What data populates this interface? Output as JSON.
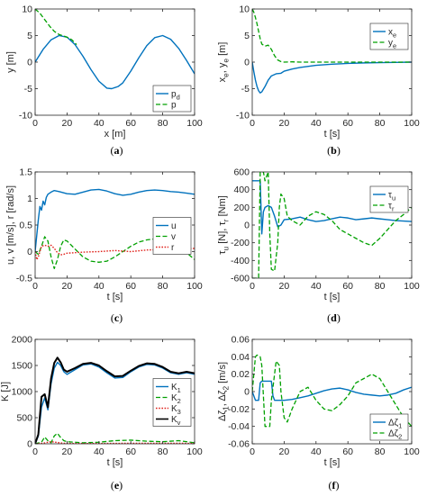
{
  "colors": {
    "blue": "#0072BD",
    "green": "#00A000",
    "red": "#E0231C",
    "black": "#000000"
  },
  "chart_data": [
    {
      "panel": "a",
      "caption": "(a)",
      "type": "line",
      "xlabel": "x [m]",
      "ylabel": "y [m]",
      "xlim": [
        0,
        100
      ],
      "ylim": [
        -10,
        10
      ],
      "xticks": [
        0,
        20,
        40,
        60,
        80,
        100
      ],
      "yticks": [
        -10,
        -5,
        0,
        5,
        10
      ],
      "legend": {
        "position": "bottom-right",
        "entries": [
          "p_d",
          "p"
        ]
      },
      "series": [
        {
          "name": "p_d",
          "color": "blue",
          "dash": "solid",
          "width": 1.4,
          "x": [
            0,
            5,
            10,
            15,
            20,
            25,
            30,
            35,
            40,
            45,
            48,
            52,
            55,
            60,
            65,
            70,
            75,
            80,
            85,
            90,
            95,
            100
          ],
          "y": [
            0,
            2.4,
            4.2,
            5,
            4.7,
            3.3,
            1.1,
            -1.4,
            -3.6,
            -4.9,
            -5,
            -4.6,
            -3.9,
            -1.7,
            0.8,
            3.1,
            4.6,
            5,
            4.3,
            2.6,
            0.3,
            -2.2
          ]
        },
        {
          "name": "p",
          "color": "green",
          "dash": "dashed",
          "width": 1.3,
          "x": [
            0,
            3,
            6,
            9,
            12,
            15,
            18,
            20,
            23,
            26
          ],
          "y": [
            10,
            9.2,
            8,
            6.8,
            5.8,
            5.2,
            4.9,
            4.7,
            4.2,
            3.3
          ]
        }
      ]
    },
    {
      "panel": "b",
      "caption": "(b)",
      "type": "line",
      "xlabel": "t [s]",
      "ylabel": "x_e, y_e [m]",
      "xlim": [
        0,
        100
      ],
      "ylim": [
        -10,
        10
      ],
      "xticks": [
        0,
        20,
        40,
        60,
        80,
        100
      ],
      "yticks": [
        -10,
        -5,
        0,
        5,
        10
      ],
      "legend": {
        "position": "top-right",
        "entries": [
          "x_e",
          "y_e"
        ]
      },
      "series": [
        {
          "name": "x_e",
          "color": "blue",
          "dash": "solid",
          "width": 1.4,
          "x": [
            0,
            1,
            2,
            3,
            4,
            5,
            6,
            8,
            10,
            12,
            15,
            18,
            20,
            25,
            30,
            40,
            50,
            60,
            70,
            80,
            90,
            100
          ],
          "y": [
            0,
            -1.8,
            -3.4,
            -4.6,
            -5.4,
            -5.8,
            -5.6,
            -4.6,
            -3.4,
            -2.6,
            -2.2,
            -2.1,
            -1.7,
            -1.3,
            -1,
            -0.6,
            -0.4,
            -0.25,
            -0.15,
            -0.1,
            -0.05,
            0
          ]
        },
        {
          "name": "y_e",
          "color": "green",
          "dash": "dashed",
          "width": 1.3,
          "x": [
            0,
            1,
            2,
            3,
            4,
            5,
            6,
            8,
            10,
            12,
            14,
            16,
            18,
            20,
            25,
            30,
            40,
            60,
            80,
            100
          ],
          "y": [
            10,
            9.4,
            8.4,
            7.2,
            5.8,
            4.4,
            3.4,
            3,
            3.2,
            2.4,
            1.2,
            0.4,
            0.1,
            0,
            0.05,
            0,
            0,
            0,
            0,
            0
          ]
        }
      ]
    },
    {
      "panel": "c",
      "caption": "(c)",
      "type": "line",
      "xlabel": "t [s]",
      "ylabel": "u, v [m/s], r [rad/s]",
      "xlim": [
        0,
        100
      ],
      "ylim": [
        -0.5,
        1.5
      ],
      "xticks": [
        0,
        20,
        40,
        60,
        80,
        100
      ],
      "yticks": [
        -0.5,
        0,
        0.5,
        1,
        1.5
      ],
      "legend": {
        "position": "right",
        "entries": [
          "u",
          "v",
          "r"
        ]
      },
      "series": [
        {
          "name": "u",
          "color": "blue",
          "dash": "solid",
          "width": 1.4,
          "x": [
            0,
            1,
            2,
            3,
            4,
            5,
            6,
            7,
            8,
            10,
            12,
            15,
            20,
            25,
            30,
            35,
            40,
            45,
            50,
            55,
            60,
            65,
            70,
            75,
            80,
            85,
            90,
            95,
            100
          ],
          "y": [
            0,
            0.3,
            0.6,
            0.85,
            0.78,
            0.95,
            0.88,
            1.02,
            1.08,
            1.12,
            1.15,
            1.13,
            1.09,
            1.08,
            1.12,
            1.16,
            1.17,
            1.14,
            1.09,
            1.06,
            1.08,
            1.12,
            1.15,
            1.16,
            1.15,
            1.13,
            1.12,
            1.1,
            1.08
          ]
        },
        {
          "name": "v",
          "color": "green",
          "dash": "dashed",
          "width": 1.3,
          "x": [
            0,
            2,
            4,
            6,
            8,
            10,
            12,
            14,
            16,
            18,
            20,
            25,
            30,
            35,
            40,
            45,
            50,
            55,
            60,
            65,
            70,
            75,
            80,
            85,
            90,
            95,
            100
          ],
          "y": [
            0,
            -0.05,
            0.1,
            0.28,
            0.2,
            -0.1,
            -0.32,
            -0.15,
            0.1,
            0.22,
            0.2,
            0.05,
            -0.1,
            -0.18,
            -0.2,
            -0.18,
            -0.1,
            0,
            0.1,
            0.18,
            0.22,
            0.24,
            0.22,
            0.17,
            0.1,
            -0.02,
            -0.15
          ]
        },
        {
          "name": "r",
          "color": "red",
          "dash": "dotted",
          "width": 1.4,
          "x": [
            0,
            1,
            2,
            4,
            6,
            8,
            10,
            12,
            14,
            16,
            18,
            20,
            25,
            30,
            40,
            50,
            60,
            70,
            80,
            90,
            100
          ],
          "y": [
            0,
            -0.15,
            -0.1,
            0.1,
            0.12,
            0.1,
            0.12,
            0.06,
            -0.02,
            -0.06,
            -0.05,
            -0.03,
            -0.02,
            -0.01,
            0,
            0.02,
            0.0,
            0.03,
            0.04,
            0.05,
            0.06
          ]
        }
      ]
    },
    {
      "panel": "d",
      "caption": "(d)",
      "type": "line",
      "xlabel": "t [s]",
      "ylabel": "τ_u [N], τ_r [Nm]",
      "xlim": [
        0,
        100
      ],
      "ylim": [
        -600,
        600
      ],
      "xticks": [
        0,
        20,
        40,
        60,
        80,
        100
      ],
      "yticks": [
        -600,
        -400,
        -200,
        0,
        200,
        400,
        600
      ],
      "legend": {
        "position": "top-right",
        "entries": [
          "τ_u",
          "τ_r"
        ]
      },
      "series": [
        {
          "name": "τ_u",
          "color": "blue",
          "dash": "solid",
          "width": 1.4,
          "x": [
            0,
            5,
            6,
            7,
            8,
            10,
            12,
            14,
            16,
            18,
            20,
            25,
            30,
            35,
            40,
            45,
            50,
            55,
            60,
            65,
            70,
            75,
            80,
            85,
            90,
            95,
            100
          ],
          "y": [
            500,
            500,
            -100,
            150,
            200,
            220,
            200,
            100,
            -20,
            0,
            60,
            70,
            90,
            60,
            40,
            50,
            70,
            90,
            80,
            60,
            70,
            80,
            70,
            60,
            50,
            45,
            40
          ]
        },
        {
          "name": "τ_r",
          "color": "green",
          "dash": "dashed",
          "width": 1.3,
          "x": [
            0,
            4,
            5,
            7,
            8,
            10,
            11,
            12,
            14,
            16,
            17,
            18,
            20,
            22,
            25,
            30,
            35,
            40,
            45,
            50,
            55,
            60,
            65,
            70,
            75,
            80,
            85,
            90,
            95,
            100
          ],
          "y": [
            -600,
            -600,
            600,
            600,
            500,
            600,
            -100,
            -500,
            -520,
            -200,
            200,
            350,
            300,
            100,
            50,
            0,
            100,
            150,
            120,
            50,
            -50,
            -100,
            -150,
            -200,
            -230,
            -150,
            -50,
            50,
            120,
            200
          ]
        }
      ]
    },
    {
      "panel": "e",
      "caption": "(e)",
      "type": "line",
      "xlabel": "t [s]",
      "ylabel": "K [J]",
      "xlim": [
        0,
        100
      ],
      "ylim": [
        0,
        2000
      ],
      "xticks": [
        0,
        20,
        40,
        60,
        80,
        100
      ],
      "yticks": [
        0,
        500,
        1000,
        1500,
        2000
      ],
      "legend": {
        "position": "right",
        "entries": [
          "K_1",
          "K_2",
          "K_3",
          "K_v"
        ]
      },
      "series": [
        {
          "name": "K_1",
          "color": "blue",
          "dash": "solid",
          "width": 1.4,
          "x": [
            0,
            2,
            4,
            6,
            8,
            10,
            12,
            14,
            16,
            18,
            20,
            25,
            30,
            35,
            40,
            45,
            50,
            55,
            60,
            65,
            70,
            75,
            80,
            85,
            90,
            95,
            100
          ],
          "y": [
            0,
            150,
            700,
            880,
            650,
            1150,
            1450,
            1560,
            1500,
            1380,
            1330,
            1420,
            1510,
            1530,
            1470,
            1360,
            1260,
            1270,
            1380,
            1470,
            1520,
            1510,
            1450,
            1360,
            1330,
            1360,
            1330
          ]
        },
        {
          "name": "K_2",
          "color": "green",
          "dash": "dashed",
          "width": 1.3,
          "x": [
            0,
            4,
            6,
            8,
            10,
            12,
            14,
            16,
            18,
            20,
            30,
            40,
            50,
            60,
            70,
            80,
            90,
            100
          ],
          "y": [
            0,
            30,
            130,
            60,
            20,
            150,
            200,
            120,
            60,
            40,
            20,
            30,
            60,
            70,
            50,
            40,
            60,
            20
          ]
        },
        {
          "name": "K_3",
          "color": "red",
          "dash": "dotted",
          "width": 1.4,
          "x": [
            0,
            5,
            8,
            10,
            14,
            18,
            25,
            40,
            60,
            80,
            100
          ],
          "y": [
            0,
            10,
            30,
            40,
            25,
            10,
            5,
            5,
            10,
            10,
            8
          ]
        },
        {
          "name": "K_v",
          "color": "black",
          "dash": "solid",
          "width": 2.0,
          "x": [
            0,
            2,
            4,
            6,
            8,
            10,
            12,
            14,
            16,
            18,
            20,
            25,
            30,
            35,
            40,
            45,
            50,
            55,
            60,
            65,
            70,
            75,
            80,
            85,
            90,
            95,
            100
          ],
          "y": [
            0,
            180,
            900,
            950,
            700,
            1250,
            1550,
            1650,
            1560,
            1420,
            1380,
            1450,
            1530,
            1550,
            1500,
            1390,
            1290,
            1300,
            1400,
            1490,
            1540,
            1530,
            1470,
            1380,
            1350,
            1380,
            1350
          ]
        }
      ]
    },
    {
      "panel": "f",
      "caption": "(f)",
      "type": "line",
      "xlabel": "t [s]",
      "ylabel": "Δζ_1, Δζ_2 [m/s]",
      "xlim": [
        0,
        100
      ],
      "ylim": [
        -0.06,
        0.06
      ],
      "xticks": [
        0,
        20,
        40,
        60,
        80,
        100
      ],
      "yticks": [
        -0.06,
        -0.04,
        -0.02,
        0,
        0.02,
        0.04,
        0.06
      ],
      "legend": {
        "position": "bottom-right",
        "entries": [
          "Δζ_1",
          "Δζ_2"
        ]
      },
      "series": [
        {
          "name": "Δζ_1",
          "color": "blue",
          "dash": "solid",
          "width": 1.4,
          "x": [
            0,
            2,
            3,
            4,
            5,
            6,
            8,
            10,
            12,
            13,
            14,
            16,
            18,
            20,
            25,
            30,
            35,
            40,
            45,
            50,
            55,
            60,
            65,
            70,
            75,
            80,
            85,
            90,
            95,
            100
          ],
          "y": [
            0,
            -0.01,
            -0.01,
            -0.01,
            0.01,
            0.012,
            0.012,
            0.012,
            0.012,
            -0.005,
            -0.01,
            -0.01,
            -0.01,
            -0.01,
            -0.009,
            -0.007,
            -0.005,
            -0.002,
            0.001,
            0.003,
            0.004,
            0.002,
            -0.001,
            -0.003,
            -0.004,
            -0.005,
            -0.004,
            -0.002,
            0.002,
            0.005
          ]
        },
        {
          "name": "Δζ_2",
          "color": "green",
          "dash": "dashed",
          "width": 1.3,
          "x": [
            0,
            2,
            3,
            5,
            6,
            8,
            10,
            11,
            12,
            14,
            15,
            17,
            18,
            20,
            22,
            25,
            30,
            35,
            40,
            45,
            50,
            55,
            60,
            65,
            70,
            75,
            80,
            85,
            90,
            95,
            100
          ],
          "y": [
            0,
            0.04,
            0.042,
            0.04,
            0.03,
            -0.04,
            -0.04,
            -0.04,
            -0.01,
            0.02,
            0.035,
            0.03,
            0.0,
            -0.03,
            -0.035,
            -0.02,
            0.0,
            0.005,
            -0.01,
            -0.02,
            -0.022,
            -0.015,
            -0.005,
            0.01,
            0.015,
            0.02,
            0.015,
            0.0,
            -0.015,
            -0.03,
            -0.04
          ]
        }
      ]
    }
  ]
}
